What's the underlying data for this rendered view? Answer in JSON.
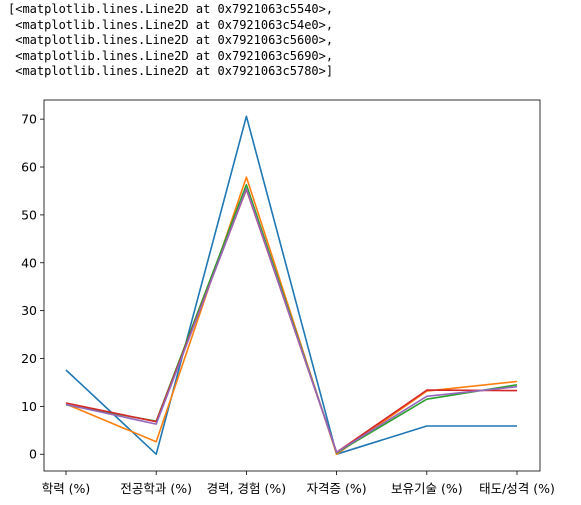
{
  "output": {
    "repr_lines": [
      "[<matplotlib.lines.Line2D at 0x7921063c5540>,",
      " <matplotlib.lines.Line2D at 0x7921063c54e0>,",
      " <matplotlib.lines.Line2D at 0x7921063c5600>,",
      " <matplotlib.lines.Line2D at 0x7921063c5690>,",
      " <matplotlib.lines.Line2D at 0x7921063c5780>]"
    ]
  },
  "chart_data": {
    "type": "line",
    "title": "",
    "xlabel": "",
    "ylabel": "",
    "categories": [
      "학력 (%)",
      "전공학과 (%)",
      "경력, 경험 (%)",
      "자격증 (%)",
      "보유기술 (%)",
      "태도/성격 (%)"
    ],
    "ylim": [
      -3.5,
      74
    ],
    "yticks": [
      0,
      10,
      20,
      30,
      40,
      50,
      60,
      70
    ],
    "grid": false,
    "legend": "none",
    "series": [
      {
        "color": "#1f77b4",
        "values": [
          17.6,
          0.0,
          70.6,
          0.0,
          5.9,
          5.9
        ]
      },
      {
        "color": "#ff7f0e",
        "values": [
          10.5,
          2.6,
          57.9,
          0.0,
          13.2,
          15.2
        ]
      },
      {
        "color": "#2ca02c",
        "values": [
          10.3,
          6.9,
          56.3,
          0.3,
          11.5,
          14.5
        ]
      },
      {
        "color": "#d62728",
        "values": [
          10.7,
          6.8,
          55.3,
          0.4,
          13.4,
          13.3
        ]
      },
      {
        "color": "#9467bd",
        "values": [
          10.4,
          6.3,
          55.5,
          0.4,
          12.1,
          14.1
        ]
      }
    ]
  }
}
